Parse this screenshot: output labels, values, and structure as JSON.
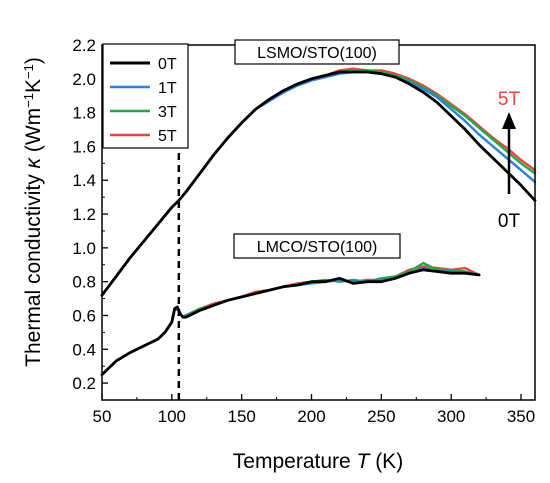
{
  "chart_data": {
    "type": "line",
    "xlabel": {
      "text": "Temperature ",
      "var": "T",
      "unit": " (K)"
    },
    "ylabel": {
      "text": "Thermal conductivity ",
      "var": "κ",
      "unit_pre": " (Wm",
      "exp1": "−1",
      "unit_mid": "K",
      "exp2": "−1",
      "unit_post": ")"
    },
    "xlim": [
      50,
      360
    ],
    "ylim": [
      0.1,
      2.2
    ],
    "xticks": [
      50,
      100,
      150,
      200,
      250,
      300,
      350
    ],
    "yticks": [
      0.2,
      0.4,
      0.6,
      0.8,
      1.0,
      1.2,
      1.4,
      1.6,
      1.8,
      2.0,
      2.2
    ],
    "ytick_labels": [
      "0.2",
      "0.4",
      "0.6",
      "0.8",
      "1.0",
      "1.2",
      "1.4",
      "1.6",
      "1.8",
      "2.0",
      "2.2"
    ],
    "legend": {
      "position": "top-left"
    },
    "vline": {
      "x": 105,
      "style": "dashed"
    },
    "labels": {
      "lsmo": "LSMO/STO(100)",
      "lmco": "LMCO/STO(100)",
      "arrow_top": "5T",
      "arrow_bottom": "0T"
    },
    "series": [
      {
        "name": "0T",
        "color": "#000000"
      },
      {
        "name": "1T",
        "color": "#2f7fd8"
      },
      {
        "name": "3T",
        "color": "#22a84a"
      },
      {
        "name": "5T",
        "color": "#e8463f"
      }
    ],
    "lsmo_curves": {
      "0T": {
        "x": [
          50,
          60,
          70,
          80,
          90,
          100,
          105,
          110,
          120,
          130,
          140,
          150,
          160,
          170,
          180,
          190,
          200,
          210,
          220,
          230,
          240,
          250,
          260,
          270,
          280,
          290,
          300,
          310,
          320,
          330,
          340,
          350,
          360
        ],
        "y": [
          0.72,
          0.83,
          0.94,
          1.04,
          1.14,
          1.24,
          1.28,
          1.33,
          1.44,
          1.55,
          1.65,
          1.74,
          1.82,
          1.88,
          1.93,
          1.97,
          2.0,
          2.02,
          2.04,
          2.04,
          2.04,
          2.03,
          2.01,
          1.97,
          1.92,
          1.86,
          1.78,
          1.7,
          1.61,
          1.53,
          1.45,
          1.37,
          1.28
        ]
      },
      "1T": {
        "x": [
          50,
          60,
          70,
          80,
          90,
          100,
          105,
          110,
          120,
          130,
          140,
          150,
          160,
          170,
          180,
          190,
          200,
          210,
          220,
          230,
          240,
          250,
          260,
          270,
          280,
          290,
          300,
          310,
          320,
          330,
          340,
          350,
          360
        ],
        "y": [
          0.72,
          0.83,
          0.94,
          1.04,
          1.14,
          1.24,
          1.28,
          1.33,
          1.44,
          1.55,
          1.65,
          1.74,
          1.82,
          1.87,
          1.92,
          1.96,
          1.99,
          2.01,
          2.03,
          2.04,
          2.04,
          2.03,
          2.01,
          1.98,
          1.94,
          1.89,
          1.82,
          1.75,
          1.67,
          1.6,
          1.53,
          1.46,
          1.39
        ]
      },
      "3T": {
        "x": [
          50,
          60,
          70,
          80,
          90,
          100,
          105,
          110,
          120,
          130,
          140,
          150,
          160,
          170,
          180,
          190,
          200,
          210,
          220,
          230,
          240,
          250,
          260,
          270,
          280,
          290,
          300,
          310,
          320,
          330,
          340,
          350,
          360
        ],
        "y": [
          0.72,
          0.83,
          0.94,
          1.04,
          1.14,
          1.24,
          1.28,
          1.33,
          1.44,
          1.55,
          1.65,
          1.74,
          1.82,
          1.88,
          1.93,
          1.97,
          2.0,
          2.02,
          2.04,
          2.05,
          2.05,
          2.04,
          2.02,
          1.99,
          1.95,
          1.9,
          1.84,
          1.78,
          1.71,
          1.64,
          1.57,
          1.5,
          1.44
        ]
      },
      "5T": {
        "x": [
          50,
          60,
          70,
          80,
          90,
          100,
          105,
          110,
          120,
          130,
          140,
          150,
          160,
          170,
          180,
          190,
          200,
          210,
          220,
          230,
          240,
          250,
          260,
          270,
          280,
          290,
          300,
          310,
          320,
          330,
          340,
          350,
          360
        ],
        "y": [
          0.72,
          0.83,
          0.94,
          1.04,
          1.14,
          1.24,
          1.28,
          1.33,
          1.44,
          1.55,
          1.65,
          1.74,
          1.82,
          1.88,
          1.93,
          1.97,
          2.0,
          2.02,
          2.05,
          2.06,
          2.05,
          2.05,
          2.03,
          2.0,
          1.96,
          1.91,
          1.85,
          1.79,
          1.72,
          1.65,
          1.59,
          1.52,
          1.46
        ]
      }
    },
    "lmco_curves": {
      "0T": {
        "x": [
          50,
          60,
          70,
          80,
          90,
          95,
          100,
          102,
          104,
          106,
          108,
          110,
          120,
          130,
          140,
          150,
          160,
          170,
          180,
          190,
          200,
          210,
          220,
          230,
          240,
          250,
          260,
          270,
          280,
          290,
          300,
          310,
          320
        ],
        "y": [
          0.25,
          0.33,
          0.38,
          0.42,
          0.46,
          0.5,
          0.56,
          0.64,
          0.65,
          0.61,
          0.59,
          0.59,
          0.63,
          0.66,
          0.69,
          0.71,
          0.73,
          0.75,
          0.77,
          0.78,
          0.8,
          0.8,
          0.82,
          0.79,
          0.8,
          0.8,
          0.82,
          0.85,
          0.87,
          0.86,
          0.85,
          0.85,
          0.84
        ]
      },
      "1T": {
        "x": [
          50,
          60,
          70,
          80,
          90,
          95,
          100,
          102,
          104,
          106,
          108,
          110,
          120,
          130,
          140,
          150,
          160,
          170,
          180,
          190,
          200,
          210,
          220,
          230,
          240,
          250,
          260,
          270,
          280,
          290,
          300,
          310,
          320
        ],
        "y": [
          0.25,
          0.33,
          0.38,
          0.42,
          0.46,
          0.5,
          0.56,
          0.63,
          0.64,
          0.61,
          0.59,
          0.6,
          0.63,
          0.66,
          0.69,
          0.71,
          0.73,
          0.75,
          0.77,
          0.78,
          0.79,
          0.8,
          0.81,
          0.8,
          0.8,
          0.81,
          0.82,
          0.85,
          0.88,
          0.86,
          0.86,
          0.85,
          0.84
        ]
      },
      "3T": {
        "x": [
          50,
          60,
          70,
          80,
          90,
          95,
          100,
          102,
          104,
          106,
          108,
          110,
          120,
          130,
          140,
          150,
          160,
          170,
          180,
          190,
          200,
          210,
          220,
          230,
          240,
          250,
          260,
          270,
          280,
          290,
          300,
          310,
          320
        ],
        "y": [
          0.25,
          0.33,
          0.38,
          0.42,
          0.46,
          0.5,
          0.56,
          0.63,
          0.64,
          0.61,
          0.59,
          0.6,
          0.64,
          0.66,
          0.69,
          0.71,
          0.73,
          0.75,
          0.77,
          0.78,
          0.8,
          0.81,
          0.8,
          0.81,
          0.8,
          0.82,
          0.83,
          0.86,
          0.91,
          0.87,
          0.87,
          0.86,
          0.84
        ]
      },
      "5T": {
        "x": [
          50,
          60,
          70,
          80,
          90,
          95,
          100,
          102,
          104,
          106,
          108,
          110,
          120,
          130,
          140,
          150,
          160,
          170,
          180,
          190,
          200,
          210,
          220,
          230,
          240,
          250,
          260,
          270,
          280,
          290,
          300,
          310,
          320
        ],
        "y": [
          0.25,
          0.33,
          0.38,
          0.42,
          0.46,
          0.5,
          0.56,
          0.63,
          0.64,
          0.61,
          0.59,
          0.6,
          0.64,
          0.67,
          0.69,
          0.71,
          0.74,
          0.75,
          0.77,
          0.79,
          0.8,
          0.8,
          0.81,
          0.8,
          0.81,
          0.81,
          0.83,
          0.87,
          0.89,
          0.88,
          0.87,
          0.88,
          0.84
        ]
      }
    }
  }
}
